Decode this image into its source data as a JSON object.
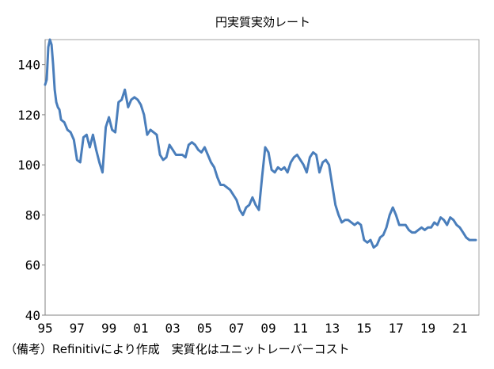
{
  "chart_data": {
    "type": "line",
    "title": "円実質実効レート",
    "xlabel": "",
    "ylabel": "",
    "ylim": [
      40,
      150
    ],
    "yticks": [
      40,
      60,
      80,
      100,
      120,
      140
    ],
    "xlim": [
      1995.0,
      2022.2
    ],
    "xtick_labels": [
      {
        "year": 1995,
        "label": "95"
      },
      {
        "year": 1997,
        "label": "97"
      },
      {
        "year": 1999,
        "label": "99"
      },
      {
        "year": 2001,
        "label": "01"
      },
      {
        "year": 2003,
        "label": "03"
      },
      {
        "year": 2005,
        "label": "05"
      },
      {
        "year": 2007,
        "label": "07"
      },
      {
        "year": 2009,
        "label": "09"
      },
      {
        "year": 2011,
        "label": "11"
      },
      {
        "year": 2013,
        "label": "13"
      },
      {
        "year": 2015,
        "label": "15"
      },
      {
        "year": 2017,
        "label": "17"
      },
      {
        "year": 2019,
        "label": "19"
      },
      {
        "year": 2021,
        "label": "21"
      }
    ],
    "grid": false,
    "legend": "none",
    "series": [
      {
        "color": "#4a7ebb",
        "x": [
          1995.0,
          1995.1,
          1995.2,
          1995.3,
          1995.4,
          1995.5,
          1995.6,
          1995.7,
          1995.8,
          1995.9,
          1996.0,
          1996.2,
          1996.4,
          1996.6,
          1996.8,
          1997.0,
          1997.2,
          1997.4,
          1997.6,
          1997.8,
          1998.0,
          1998.2,
          1998.4,
          1998.6,
          1998.8,
          1999.0,
          1999.2,
          1999.4,
          1999.6,
          1999.8,
          2000.0,
          2000.2,
          2000.4,
          2000.6,
          2000.8,
          2001.0,
          2001.2,
          2001.4,
          2001.6,
          2001.8,
          2002.0,
          2002.2,
          2002.4,
          2002.6,
          2002.8,
          2003.0,
          2003.2,
          2003.4,
          2003.6,
          2003.8,
          2004.0,
          2004.2,
          2004.4,
          2004.6,
          2004.8,
          2005.0,
          2005.2,
          2005.4,
          2005.6,
          2005.8,
          2006.0,
          2006.2,
          2006.4,
          2006.6,
          2006.8,
          2007.0,
          2007.2,
          2007.4,
          2007.6,
          2007.8,
          2008.0,
          2008.2,
          2008.4,
          2008.6,
          2008.8,
          2009.0,
          2009.2,
          2009.4,
          2009.6,
          2009.8,
          2010.0,
          2010.2,
          2010.4,
          2010.6,
          2010.8,
          2011.0,
          2011.2,
          2011.4,
          2011.6,
          2011.8,
          2012.0,
          2012.2,
          2012.4,
          2012.6,
          2012.8,
          2013.0,
          2013.2,
          2013.4,
          2013.6,
          2013.8,
          2014.0,
          2014.2,
          2014.4,
          2014.6,
          2014.8,
          2015.0,
          2015.2,
          2015.4,
          2015.6,
          2015.8,
          2016.0,
          2016.2,
          2016.4,
          2016.6,
          2016.8,
          2017.0,
          2017.2,
          2017.4,
          2017.6,
          2017.8,
          2018.0,
          2018.2,
          2018.4,
          2018.6,
          2018.8,
          2019.0,
          2019.2,
          2019.4,
          2019.6,
          2019.8,
          2020.0,
          2020.2,
          2020.4,
          2020.6,
          2020.8,
          2021.0,
          2021.2,
          2021.4,
          2021.6,
          2021.8,
          2022.0
        ],
        "values": [
          132,
          134,
          147,
          150,
          148,
          140,
          130,
          125,
          123,
          122,
          118,
          117,
          114,
          113,
          110,
          102,
          101,
          111,
          112,
          107,
          112,
          106,
          101,
          97,
          115,
          119,
          114,
          113,
          125,
          126,
          130,
          123,
          126,
          127,
          126,
          124,
          120,
          112,
          114,
          113,
          112,
          104,
          102,
          103,
          108,
          106,
          104,
          104,
          104,
          103,
          108,
          109,
          108,
          106,
          105,
          107,
          104,
          101,
          99,
          95,
          92,
          92,
          91,
          90,
          88,
          86,
          82,
          80,
          83,
          84,
          87,
          84,
          82,
          95,
          107,
          105,
          98,
          97,
          99,
          98,
          99,
          97,
          101,
          103,
          104,
          102,
          100,
          97,
          103,
          105,
          104,
          97,
          101,
          102,
          100,
          92,
          84,
          80,
          77,
          78,
          78,
          77,
          76,
          77,
          76,
          70,
          69,
          70,
          67,
          68,
          71,
          72,
          75,
          80,
          83,
          80,
          76,
          76,
          76,
          74,
          73,
          73,
          74,
          75,
          74,
          75,
          75,
          77,
          76,
          79,
          78,
          76,
          79,
          78,
          76,
          75,
          73,
          71,
          70,
          70,
          70
        ]
      }
    ]
  },
  "note": "（備考）Refinitivにより作成　実質化はユニットレーバーコスト"
}
